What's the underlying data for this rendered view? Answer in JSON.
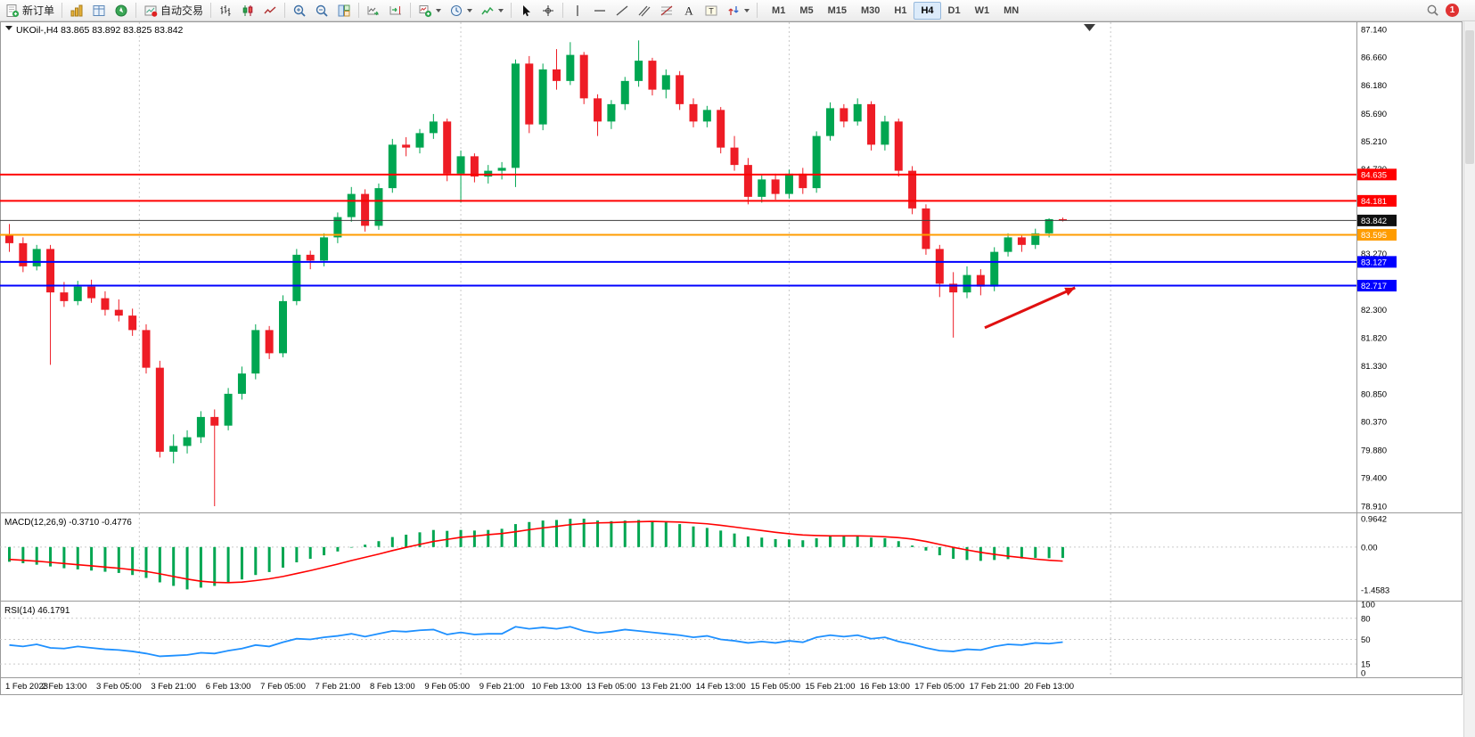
{
  "toolbar": {
    "new_order_label": "新订单",
    "auto_trading_label": "自动交易",
    "timeframes": [
      "M1",
      "M5",
      "M15",
      "M30",
      "H1",
      "H4",
      "D1",
      "W1",
      "MN"
    ],
    "active_timeframe": "H4",
    "notification_count": "1"
  },
  "chart_data": {
    "type": "candlestick",
    "symbol": "UKOil-",
    "period": "H4",
    "title": "UKOil-,H4",
    "quote_ohlc": "83.865 83.892 83.825 83.842",
    "up_color": "#00a651",
    "down_color": "#ee1c25",
    "price_axis_range": [
      78.91,
      87.14
    ],
    "price_axis_ticks": [
      "87.140",
      "86.660",
      "86.180",
      "85.690",
      "85.210",
      "84.730",
      "83.270",
      "82.300",
      "81.820",
      "81.330",
      "80.850",
      "80.370",
      "79.880",
      "79.400",
      "78.910"
    ],
    "time_labels": [
      "1 Feb 2023",
      "2 Feb 13:00",
      "3 Feb 05:00",
      "3 Feb 21:00",
      "6 Feb 13:00",
      "7 Feb 05:00",
      "7 Feb 21:00",
      "8 Feb 13:00",
      "9 Feb 05:00",
      "9 Feb 21:00",
      "10 Feb 13:00",
      "13 Feb 05:00",
      "13 Feb 21:00",
      "14 Feb 13:00",
      "15 Feb 05:00",
      "15 Feb 21:00",
      "16 Feb 13:00",
      "17 Feb 05:00",
      "17 Feb 21:00",
      "20 Feb 13:00"
    ],
    "bars_per_time_label": 4,
    "bars_ohlc": [
      [
        83.6,
        83.78,
        83.3,
        83.45
      ],
      [
        83.45,
        83.55,
        82.95,
        83.05
      ],
      [
        83.05,
        83.42,
        82.98,
        83.35
      ],
      [
        83.35,
        83.42,
        81.35,
        82.6
      ],
      [
        82.6,
        82.78,
        82.35,
        82.45
      ],
      [
        82.45,
        82.8,
        82.38,
        82.7
      ],
      [
        82.7,
        82.82,
        82.42,
        82.5
      ],
      [
        82.5,
        82.62,
        82.2,
        82.3
      ],
      [
        82.3,
        82.48,
        82.1,
        82.2
      ],
      [
        82.2,
        82.32,
        81.85,
        81.95
      ],
      [
        81.95,
        82.05,
        81.2,
        81.3
      ],
      [
        81.3,
        81.42,
        79.75,
        79.85
      ],
      [
        79.85,
        80.15,
        79.65,
        79.95
      ],
      [
        79.95,
        80.22,
        79.82,
        80.1
      ],
      [
        80.1,
        80.55,
        80.0,
        80.45
      ],
      [
        80.45,
        80.58,
        78.91,
        80.3
      ],
      [
        80.3,
        80.95,
        80.22,
        80.85
      ],
      [
        80.85,
        81.32,
        80.75,
        81.2
      ],
      [
        81.2,
        82.05,
        81.1,
        81.95
      ],
      [
        81.95,
        82.02,
        81.45,
        81.55
      ],
      [
        81.55,
        82.55,
        81.48,
        82.45
      ],
      [
        82.45,
        83.35,
        82.38,
        83.25
      ],
      [
        83.25,
        83.32,
        83.0,
        83.15
      ],
      [
        83.15,
        83.62,
        83.05,
        83.55
      ],
      [
        83.55,
        83.98,
        83.45,
        83.9
      ],
      [
        83.9,
        84.42,
        83.82,
        84.3
      ],
      [
        84.3,
        84.38,
        83.65,
        83.75
      ],
      [
        83.75,
        84.48,
        83.68,
        84.4
      ],
      [
        84.4,
        85.25,
        84.32,
        85.15
      ],
      [
        85.15,
        85.28,
        84.95,
        85.1
      ],
      [
        85.1,
        85.42,
        85.0,
        85.35
      ],
      [
        85.35,
        85.68,
        85.25,
        85.55
      ],
      [
        85.55,
        85.6,
        84.52,
        84.65
      ],
      [
        84.65,
        85.05,
        84.15,
        84.95
      ],
      [
        84.95,
        85.0,
        84.5,
        84.6
      ],
      [
        84.6,
        84.8,
        84.48,
        84.7
      ],
      [
        84.7,
        84.85,
        84.55,
        84.75
      ],
      [
        84.75,
        86.62,
        84.42,
        86.55
      ],
      [
        86.55,
        86.68,
        85.35,
        85.5
      ],
      [
        85.5,
        86.55,
        85.4,
        86.45
      ],
      [
        86.45,
        86.8,
        86.1,
        86.25
      ],
      [
        86.25,
        86.92,
        86.18,
        86.7
      ],
      [
        86.7,
        86.75,
        85.85,
        85.95
      ],
      [
        85.95,
        86.02,
        85.3,
        85.55
      ],
      [
        85.55,
        85.92,
        85.42,
        85.85
      ],
      [
        85.85,
        86.32,
        85.75,
        86.25
      ],
      [
        86.25,
        86.95,
        86.15,
        86.6
      ],
      [
        86.6,
        86.65,
        86.0,
        86.1
      ],
      [
        86.1,
        86.45,
        85.95,
        86.35
      ],
      [
        86.35,
        86.42,
        85.75,
        85.85
      ],
      [
        85.85,
        85.95,
        85.45,
        85.55
      ],
      [
        85.55,
        85.82,
        85.45,
        85.75
      ],
      [
        85.75,
        85.8,
        85.0,
        85.1
      ],
      [
        85.1,
        85.3,
        84.7,
        84.8
      ],
      [
        84.8,
        84.92,
        84.12,
        84.25
      ],
      [
        84.25,
        84.62,
        84.15,
        84.55
      ],
      [
        84.55,
        84.65,
        84.2,
        84.3
      ],
      [
        84.3,
        84.72,
        84.22,
        84.65
      ],
      [
        84.65,
        84.75,
        84.3,
        84.4
      ],
      [
        84.4,
        85.38,
        84.32,
        85.3
      ],
      [
        85.3,
        85.88,
        85.22,
        85.78
      ],
      [
        85.78,
        85.85,
        85.45,
        85.55
      ],
      [
        85.55,
        85.95,
        85.48,
        85.85
      ],
      [
        85.85,
        85.9,
        85.05,
        85.15
      ],
      [
        85.15,
        85.65,
        85.05,
        85.55
      ],
      [
        85.55,
        85.6,
        84.6,
        84.7
      ],
      [
        84.7,
        84.78,
        83.95,
        84.05
      ],
      [
        84.05,
        84.12,
        83.25,
        83.35
      ],
      [
        83.35,
        83.42,
        82.52,
        82.75
      ],
      [
        82.75,
        82.95,
        81.82,
        82.6
      ],
      [
        82.6,
        83.05,
        82.5,
        82.9
      ],
      [
        82.9,
        83.0,
        82.55,
        82.7
      ],
      [
        82.7,
        83.38,
        82.62,
        83.3
      ],
      [
        83.3,
        83.62,
        83.22,
        83.55
      ],
      [
        83.55,
        83.6,
        83.3,
        83.42
      ],
      [
        83.42,
        83.7,
        83.35,
        83.62
      ],
      [
        83.62,
        83.88,
        83.55,
        83.865
      ],
      [
        83.865,
        83.892,
        83.825,
        83.842
      ]
    ],
    "hlines": [
      {
        "price": 84.635,
        "label": "84.635",
        "color": "#ff0000",
        "width": 2
      },
      {
        "price": 84.181,
        "label": "84.181",
        "color": "#ff0000",
        "width": 2
      },
      {
        "price": 83.842,
        "label": "83.842",
        "color": "#3c3c3c",
        "width": 1,
        "badge": "#101010",
        "role": "current-price"
      },
      {
        "price": 83.595,
        "label": "83.595",
        "color": "#ff9c00",
        "width": 2
      },
      {
        "price": 83.127,
        "label": "83.127",
        "color": "#0000ff",
        "width": 2
      },
      {
        "price": 82.717,
        "label": "82.717",
        "color": "#0000ff",
        "width": 2
      }
    ],
    "separators_bar_index": [
      9.5,
      33,
      57,
      80.5
    ],
    "trend_arrow": {
      "from_bar": 71.3,
      "from_price": 81.99,
      "to_bar": 77.9,
      "to_price": 82.68,
      "color": "#e01010"
    },
    "indicators": [
      {
        "name": "MACD",
        "label": "MACD(12,26,9)",
        "values_text": "-0.3710 -0.4776",
        "scale_ticks": [
          "0.9642",
          "0.00",
          "-1.4583"
        ],
        "range": [
          -1.4583,
          0.9642
        ],
        "histogram_color": "#00a651",
        "signal_color": "#ff0000",
        "histogram": [
          -0.5,
          -0.55,
          -0.6,
          -0.66,
          -0.72,
          -0.76,
          -0.8,
          -0.84,
          -0.88,
          -0.95,
          -1.05,
          -1.2,
          -1.32,
          -1.44,
          -1.38,
          -1.32,
          -1.22,
          -1.1,
          -0.95,
          -0.85,
          -0.7,
          -0.52,
          -0.4,
          -0.28,
          -0.15,
          -0.02,
          0.08,
          0.2,
          0.34,
          0.42,
          0.5,
          0.58,
          0.55,
          0.58,
          0.56,
          0.58,
          0.62,
          0.78,
          0.85,
          0.9,
          0.92,
          0.96,
          0.9642,
          0.9,
          0.88,
          0.9,
          0.92,
          0.88,
          0.84,
          0.78,
          0.7,
          0.65,
          0.56,
          0.46,
          0.36,
          0.32,
          0.27,
          0.26,
          0.23,
          0.3,
          0.36,
          0.36,
          0.38,
          0.32,
          0.3,
          0.2,
          0.05,
          -0.12,
          -0.28,
          -0.4,
          -0.44,
          -0.47,
          -0.44,
          -0.41,
          -0.39,
          -0.37,
          -0.38,
          -0.371
        ],
        "signal": [
          -0.42,
          -0.45,
          -0.48,
          -0.52,
          -0.56,
          -0.6,
          -0.64,
          -0.68,
          -0.72,
          -0.77,
          -0.83,
          -0.91,
          -1.0,
          -1.09,
          -1.16,
          -1.2,
          -1.21,
          -1.19,
          -1.14,
          -1.08,
          -1.0,
          -0.9,
          -0.8,
          -0.69,
          -0.58,
          -0.46,
          -0.35,
          -0.24,
          -0.12,
          -0.01,
          0.09,
          0.19,
          0.26,
          0.33,
          0.37,
          0.42,
          0.46,
          0.52,
          0.59,
          0.65,
          0.7,
          0.76,
          0.8,
          0.82,
          0.83,
          0.85,
          0.86,
          0.87,
          0.86,
          0.85,
          0.82,
          0.79,
          0.74,
          0.68,
          0.62,
          0.56,
          0.5,
          0.45,
          0.41,
          0.39,
          0.38,
          0.38,
          0.38,
          0.37,
          0.35,
          0.32,
          0.27,
          0.19,
          0.09,
          -0.01,
          -0.1,
          -0.18,
          -0.25,
          -0.31,
          -0.36,
          -0.41,
          -0.45,
          -0.4776
        ]
      },
      {
        "name": "RSI",
        "label": "RSI(14)",
        "values_text": "46.1791",
        "scale_ticks": [
          "100",
          "80",
          "50",
          "15",
          "0"
        ],
        "levels": [
          80,
          50,
          15
        ],
        "range": [
          0,
          100
        ],
        "color": "#1e90ff",
        "values": [
          42,
          40,
          43,
          38,
          37,
          40,
          38,
          36,
          35,
          33,
          30,
          26,
          27,
          28,
          31,
          30,
          34,
          37,
          42,
          40,
          46,
          51,
          50,
          53,
          55,
          58,
          54,
          58,
          62,
          61,
          63,
          64,
          57,
          60,
          57,
          58,
          58,
          68,
          65,
          67,
          65,
          68,
          62,
          59,
          61,
          64,
          62,
          60,
          58,
          56,
          53,
          55,
          50,
          48,
          45,
          47,
          45,
          48,
          46,
          53,
          56,
          54,
          56,
          51,
          53,
          47,
          43,
          38,
          34,
          33,
          36,
          35,
          40,
          43,
          42,
          45,
          44,
          46.18
        ]
      }
    ]
  }
}
